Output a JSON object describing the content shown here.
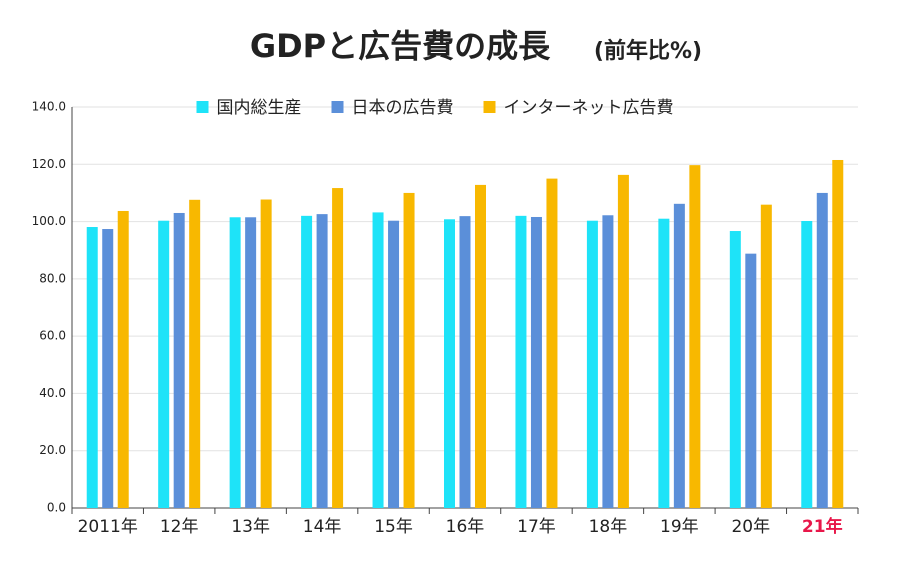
{
  "chart_data": {
    "type": "bar",
    "title": "GDPと広告費の成長",
    "subtitle": "(前年比%)",
    "categories": [
      "2011年",
      "12年",
      "13年",
      "14年",
      "15年",
      "16年",
      "17年",
      "18年",
      "19年",
      "20年",
      "21年"
    ],
    "highlight_index": 10,
    "highlight_color": "#e8174a",
    "series": [
      {
        "name": "国内総生産",
        "color": "#1ee3f8",
        "values": [
          98.1,
          100.3,
          101.5,
          102.0,
          103.2,
          100.8,
          102.0,
          100.3,
          101.0,
          96.7,
          100.2
        ]
      },
      {
        "name": "日本の広告費",
        "color": "#5b8fd9",
        "values": [
          97.4,
          103.0,
          101.5,
          102.6,
          100.3,
          101.9,
          101.6,
          102.2,
          106.2,
          88.8,
          110.0
        ]
      },
      {
        "name": "インターネット広告費",
        "color": "#f8b800",
        "values": [
          103.7,
          107.6,
          107.7,
          111.7,
          110.0,
          112.8,
          115.0,
          116.3,
          119.7,
          105.9,
          121.5
        ]
      }
    ],
    "ylim": [
      0,
      140
    ],
    "yticks": [
      {
        "value": 0,
        "label": "0.0"
      },
      {
        "value": 20,
        "label": "20.0"
      },
      {
        "value": 40,
        "label": "40.0"
      },
      {
        "value": 60,
        "label": "60.0"
      },
      {
        "value": 80,
        "label": "80.0"
      },
      {
        "value": 100,
        "label": "100.0"
      },
      {
        "value": 120,
        "label": "120.0"
      },
      {
        "value": 140,
        "label": "140.0"
      }
    ],
    "grid": true,
    "legend": "top"
  }
}
